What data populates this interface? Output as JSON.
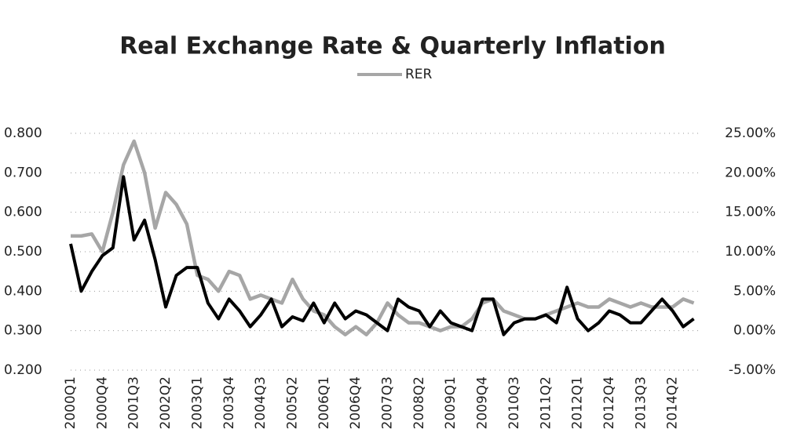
{
  "chart_data": {
    "type": "line",
    "title": "Real Exchange Rate & Quarterly Inflation",
    "categories": [
      "2000Q1",
      null,
      null,
      "2000Q4",
      null,
      null,
      "2001Q3",
      null,
      null,
      "2002Q2",
      null,
      null,
      "2003Q1",
      null,
      null,
      "2003Q4",
      null,
      null,
      "2004Q3",
      null,
      null,
      "2005Q2",
      null,
      null,
      "2006Q1",
      null,
      null,
      "2006Q4",
      null,
      null,
      "2007Q3",
      null,
      null,
      "2008Q2",
      null,
      null,
      "2009Q1",
      null,
      null,
      "2009Q4",
      null,
      null,
      "2010Q3",
      null,
      null,
      "2011Q2",
      null,
      null,
      "2012Q1",
      null,
      null,
      "2012Q4",
      null,
      null,
      "2013Q3",
      null,
      null,
      "2014Q2",
      null,
      null
    ],
    "series": [
      {
        "name": "RER",
        "color": "#a6a6a6",
        "values": [
          0.54,
          0.54,
          0.545,
          0.5,
          0.6,
          0.72,
          0.78,
          0.7,
          0.56,
          0.65,
          0.62,
          0.57,
          0.44,
          0.43,
          0.4,
          0.45,
          0.44,
          0.38,
          0.39,
          0.38,
          0.37,
          0.43,
          0.38,
          0.35,
          0.34,
          0.31,
          0.29,
          0.31,
          0.29,
          0.32,
          0.37,
          0.34,
          0.32,
          0.32,
          0.31,
          0.3,
          0.31,
          0.31,
          0.33,
          0.37,
          0.38,
          0.35,
          0.34,
          0.33,
          0.33,
          0.34,
          0.35,
          0.36,
          0.37,
          0.36,
          0.36,
          0.38,
          0.37,
          0.36,
          0.37,
          0.36,
          0.36,
          0.36,
          0.38,
          0.37
        ]
      },
      {
        "color": "#000000",
        "axis": "y2",
        "values": [
          11,
          5,
          7.5,
          9.5,
          10.5,
          19.5,
          11.5,
          14,
          9,
          3,
          7,
          8,
          8,
          3.5,
          1.5,
          4,
          2.5,
          0.5,
          2,
          4,
          0.5,
          1.75,
          1.25,
          3.5,
          1,
          3.5,
          1.5,
          2.5,
          2,
          1,
          0,
          4,
          3,
          2.5,
          0.5,
          2.5,
          1,
          0.5,
          0,
          4,
          4,
          -0.5,
          1,
          1.5,
          1.5,
          2,
          1,
          5.5,
          1.5,
          0,
          1,
          2.5,
          2,
          1,
          1,
          2.5,
          4,
          2.5,
          0.5,
          1.5
        ]
      }
    ],
    "ylim": [
      0.2,
      0.8
    ],
    "yticks": [
      {
        "value": 0.2,
        "label": "0.200"
      },
      {
        "value": 0.3,
        "label": "0.300"
      },
      {
        "value": 0.4,
        "label": "0.400"
      },
      {
        "value": 0.5,
        "label": "0.500"
      },
      {
        "value": 0.6,
        "label": "0.600"
      },
      {
        "value": 0.7,
        "label": "0.700"
      },
      {
        "value": 0.8,
        "label": "0.800"
      }
    ],
    "y2lim": [
      -5,
      25
    ],
    "y2ticks": [
      {
        "value": -5,
        "label": "-5.00%"
      },
      {
        "value": 0,
        "label": "0.00%"
      },
      {
        "value": 5,
        "label": "5.00%"
      },
      {
        "value": 10,
        "label": "10.00%"
      },
      {
        "value": 15,
        "label": "15.00%"
      },
      {
        "value": 20,
        "label": "20.00%"
      },
      {
        "value": 25,
        "label": "25.00%"
      }
    ],
    "grid": true,
    "legend": "top"
  }
}
